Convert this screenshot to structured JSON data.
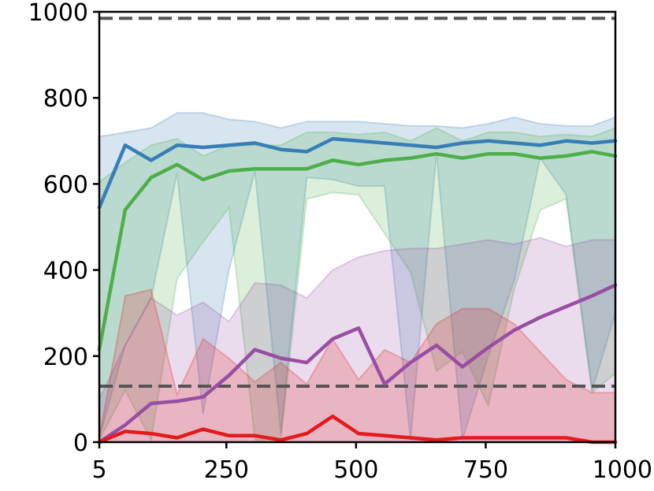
{
  "chart_data": {
    "type": "line",
    "title": "",
    "xlabel": "",
    "ylabel": "",
    "xlim": [
      5,
      1000
    ],
    "ylim": [
      0,
      1000
    ],
    "grid": false,
    "legend": "none",
    "x_ticks": [
      5,
      250,
      500,
      750,
      1000
    ],
    "y_ticks": [
      0,
      200,
      400,
      600,
      800,
      1000
    ],
    "x_tick_labels": [
      "5",
      "250",
      "500",
      "750",
      "1000"
    ],
    "y_tick_labels": [
      "0",
      "200",
      "400",
      "600",
      "800",
      "1000"
    ],
    "x": [
      5,
      55,
      105,
      155,
      205,
      255,
      305,
      355,
      405,
      455,
      505,
      555,
      605,
      655,
      705,
      755,
      805,
      855,
      905,
      955,
      1000
    ],
    "reference_lines": [
      {
        "y": 985,
        "color": "#555555",
        "style": "dashed"
      },
      {
        "y": 130,
        "color": "#555555",
        "style": "dashed"
      }
    ],
    "series": [
      {
        "color": "#377eb8",
        "values": [
          545,
          690,
          655,
          690,
          685,
          690,
          695,
          680,
          675,
          705,
          700,
          695,
          690,
          685,
          695,
          700,
          695,
          690,
          700,
          695,
          700
        ],
        "upper": [
          710,
          720,
          730,
          765,
          765,
          750,
          745,
          730,
          745,
          745,
          745,
          740,
          735,
          735,
          730,
          740,
          755,
          740,
          735,
          735,
          755
        ],
        "lower": [
          10,
          225,
          335,
          625,
          65,
          400,
          630,
          20,
          615,
          610,
          595,
          595,
          5,
          670,
          5,
          200,
          375,
          660,
          575,
          120,
          300
        ]
      },
      {
        "color": "#4daf4a",
        "values": [
          215,
          540,
          615,
          645,
          610,
          630,
          635,
          635,
          635,
          655,
          645,
          655,
          660,
          670,
          660,
          670,
          670,
          660,
          665,
          675,
          665
        ],
        "upper": [
          605,
          650,
          690,
          705,
          665,
          690,
          690,
          690,
          720,
          720,
          715,
          720,
          700,
          730,
          700,
          720,
          720,
          710,
          715,
          710,
          730
        ],
        "lower": [
          5,
          120,
          5,
          380,
          465,
          545,
          5,
          5,
          565,
          580,
          575,
          485,
          395,
          165,
          210,
          85,
          355,
          540,
          565,
          115,
          160
        ]
      },
      {
        "color": "#984ea3",
        "values": [
          0,
          40,
          90,
          95,
          105,
          155,
          215,
          195,
          185,
          240,
          265,
          135,
          185,
          225,
          175,
          220,
          260,
          290,
          315,
          340,
          365
        ],
        "upper": [
          100,
          225,
          335,
          295,
          325,
          280,
          370,
          365,
          335,
          400,
          430,
          445,
          450,
          450,
          460,
          470,
          460,
          475,
          455,
          470,
          470
        ],
        "lower": [
          0,
          0,
          0,
          0,
          0,
          0,
          0,
          0,
          0,
          0,
          0,
          0,
          0,
          0,
          0,
          0,
          0,
          0,
          0,
          0,
          0
        ]
      },
      {
        "color": "#e41a1c",
        "values": [
          0,
          25,
          20,
          10,
          30,
          15,
          15,
          5,
          20,
          60,
          20,
          15,
          10,
          5,
          10,
          10,
          10,
          10,
          10,
          0,
          0
        ],
        "upper": [
          10,
          340,
          355,
          110,
          240,
          195,
          140,
          185,
          135,
          240,
          145,
          215,
          185,
          275,
          310,
          310,
          275,
          210,
          145,
          115,
          115
        ],
        "lower": [
          0,
          0,
          0,
          0,
          0,
          0,
          0,
          0,
          0,
          0,
          0,
          0,
          0,
          0,
          0,
          0,
          0,
          0,
          0,
          0,
          0
        ]
      }
    ]
  }
}
